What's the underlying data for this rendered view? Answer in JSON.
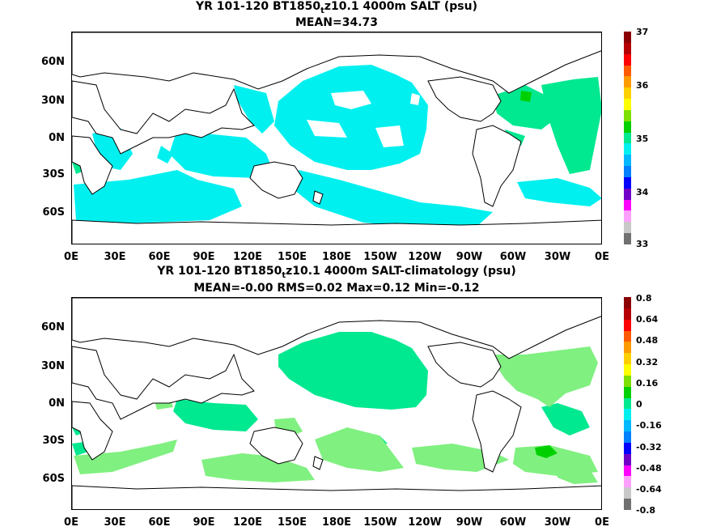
{
  "panel1": {
    "title": "YR 101-120 BT1850",
    "title_sub": "t",
    "title_rest": "z10.1 4000m SALT (psu)",
    "subtitle": "MEAN=34.73",
    "colorbar_labels": [
      "37",
      "36",
      "35",
      "34",
      "33"
    ],
    "colorbar_colors": [
      "#8b0000",
      "#b40000",
      "#ff0000",
      "#ff5a00",
      "#ff9a00",
      "#ffd000",
      "#ffff00",
      "#7ee000",
      "#00d000",
      "#00e890",
      "#00f0f0",
      "#00b8ff",
      "#0080ff",
      "#0000ff",
      "#7000c8",
      "#ff00ff",
      "#ffa0ff",
      "#c8c8c8",
      "#707070"
    ]
  },
  "panel2": {
    "title": "YR 101-120 BT1850",
    "title_sub": "t",
    "title_rest": "z10.1 4000m SALT-climatology (psu)",
    "subtitle": "MEAN=-0.00   RMS=0.02   Max=0.12   Min=-0.12",
    "colorbar_labels": [
      "0.8",
      "0.64",
      "0.48",
      "0.32",
      "0.16",
      "0",
      "-0.16",
      "-0.32",
      "-0.48",
      "-0.64",
      "-0.8"
    ],
    "colorbar_colors": [
      "#8b0000",
      "#b40000",
      "#ff0000",
      "#ff5a00",
      "#ff9a00",
      "#ffd000",
      "#ffff00",
      "#7ee000",
      "#00d000",
      "#00e890",
      "#00f0f0",
      "#00b8ff",
      "#0080ff",
      "#0000ff",
      "#7000c8",
      "#ff00ff",
      "#ffa0ff",
      "#c8c8c8",
      "#707070"
    ]
  },
  "lat_labels": [
    "60N",
    "30N",
    "0N",
    "30S",
    "60S"
  ],
  "lon_labels": [
    "0E",
    "30E",
    "60E",
    "90E",
    "120E",
    "150E",
    "180E",
    "150W",
    "120W",
    "90W",
    "60W",
    "30W",
    "0E"
  ],
  "colors": {
    "field_cyan": "#00f0f0",
    "field_light_green": "#80f080",
    "field_aqua_green": "#00e890",
    "field_green": "#00d000"
  }
}
